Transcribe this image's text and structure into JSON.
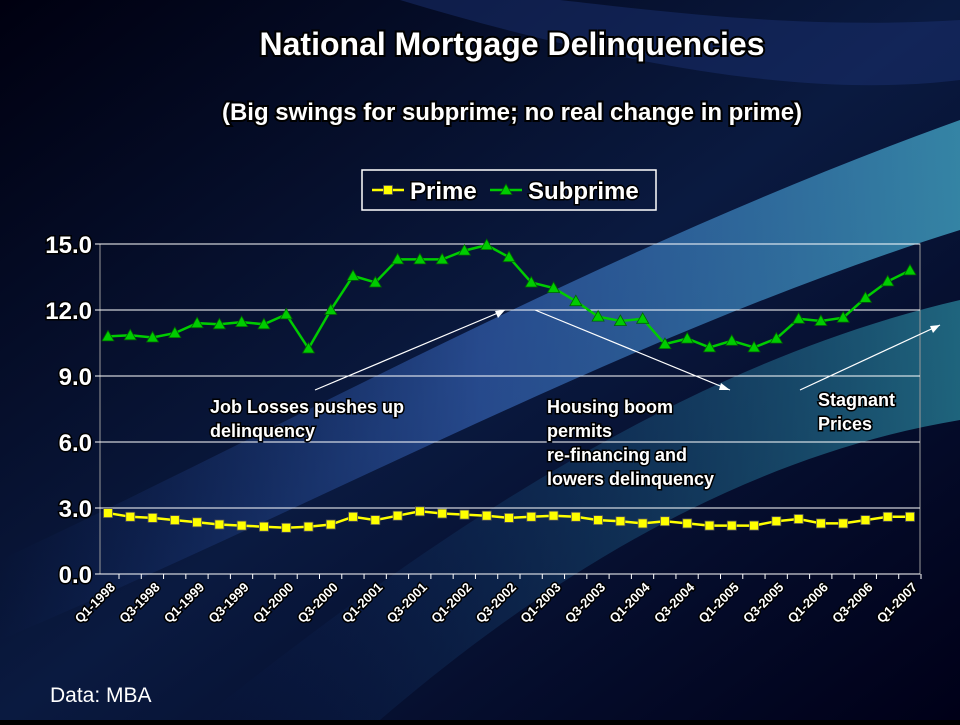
{
  "chart_data": {
    "type": "line",
    "title": "National Mortgage Delinquencies",
    "subtitle": "(Big swings for subprime; no real change in prime)",
    "categories": [
      "Q1-1998",
      null,
      "Q3-1998",
      null,
      "Q1-1999",
      null,
      "Q3-1999",
      null,
      "Q1-2000",
      null,
      "Q3-2000",
      null,
      "Q1-2001",
      null,
      "Q3-2001",
      null,
      "Q1-2002",
      null,
      "Q3-2002",
      null,
      "Q1-2003",
      null,
      "Q3-2003",
      null,
      "Q1-2004",
      null,
      "Q3-2004",
      null,
      "Q1-2005",
      null,
      "Q3-2005",
      null,
      "Q1-2006",
      null,
      "Q3-2006",
      null,
      "Q1-2007"
    ],
    "series": [
      {
        "name": "Prime",
        "color": "#ffff00",
        "marker": "square",
        "values": [
          2.77,
          2.6,
          2.55,
          2.45,
          2.35,
          2.25,
          2.2,
          2.15,
          2.1,
          2.15,
          2.25,
          2.6,
          2.45,
          2.65,
          2.85,
          2.75,
          2.7,
          2.65,
          2.55,
          2.6,
          2.65,
          2.6,
          2.45,
          2.4,
          2.3,
          2.4,
          2.3,
          2.2,
          2.2,
          2.2,
          2.4,
          2.5,
          2.3,
          2.3,
          2.45,
          2.6,
          2.6
        ]
      },
      {
        "name": "Subprime",
        "color": "#00cc00",
        "marker": "triangle",
        "values": [
          10.8,
          10.85,
          10.75,
          10.95,
          11.4,
          11.35,
          11.45,
          11.35,
          11.8,
          10.25,
          12.0,
          13.55,
          13.25,
          14.3,
          14.3,
          14.3,
          14.7,
          14.95,
          14.4,
          13.25,
          13.0,
          12.4,
          11.7,
          11.5,
          11.6,
          10.45,
          10.7,
          10.3,
          10.6,
          10.3,
          10.7,
          11.6,
          11.5,
          11.65,
          12.55,
          13.3,
          13.8
        ]
      }
    ],
    "ylim": [
      0,
      15
    ],
    "yticks": [
      {
        "value": 0,
        "label": "0.0"
      },
      {
        "value": 3,
        "label": "3.0"
      },
      {
        "value": 6,
        "label": "6.0"
      },
      {
        "value": 9,
        "label": "9.0"
      },
      {
        "value": 12,
        "label": "12.0"
      },
      {
        "value": 15,
        "label": "15.0"
      }
    ],
    "grid": true,
    "legend": "top",
    "annotations": [
      {
        "lines": [
          "Job Losses pushes up",
          "delinquency"
        ]
      },
      {
        "lines": [
          "Housing boom",
          "permits",
          "re-financing and",
          "lowers delinquency"
        ]
      },
      {
        "lines": [
          "Stagnant",
          "Prices"
        ]
      }
    ],
    "source": "Data: MBA"
  }
}
